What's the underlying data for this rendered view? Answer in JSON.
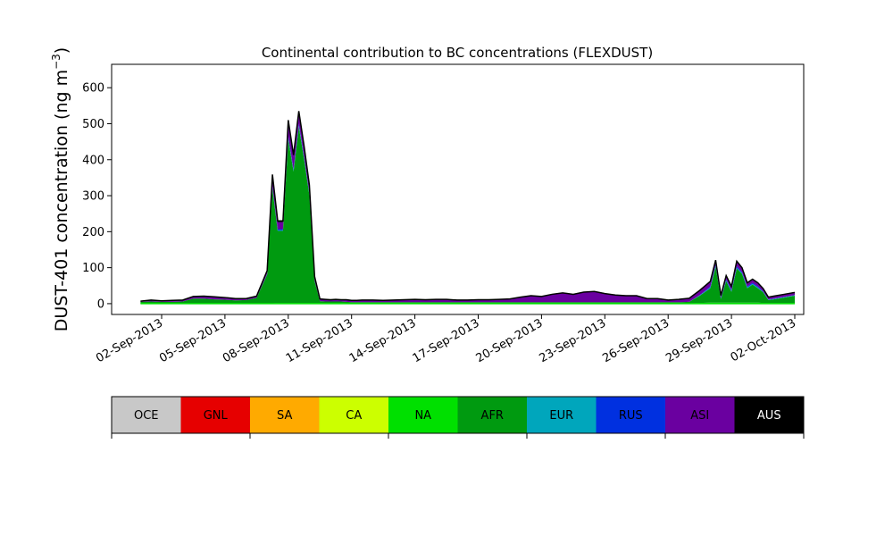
{
  "chart_data": {
    "type": "area",
    "title": "Continental contribution to BC concentrations (FLEXDUST)",
    "ylabel": "DUST-401 concentration (ng m",
    "ylabel_unit_superscript": "−3",
    "ylabel_close": ")",
    "xlabel": "",
    "ylim": [
      -30,
      665
    ],
    "yticks": [
      0,
      100,
      200,
      300,
      400,
      500,
      600
    ],
    "xticks": [
      "02-Sep-2013",
      "05-Sep-2013",
      "08-Sep-2013",
      "11-Sep-2013",
      "14-Sep-2013",
      "17-Sep-2013",
      "20-Sep-2013",
      "23-Sep-2013",
      "26-Sep-2013",
      "29-Sep-2013",
      "02-Oct-2013"
    ],
    "grid": false,
    "stacked": true,
    "region_legend": [
      {
        "name": "OCE",
        "color": "#c8c8c8",
        "label_color": "#000000"
      },
      {
        "name": "GNL",
        "color": "#e60000",
        "label_color": "#000000"
      },
      {
        "name": "SA",
        "color": "#ffaa00",
        "label_color": "#000000"
      },
      {
        "name": "CA",
        "color": "#ccff00",
        "label_color": "#000000"
      },
      {
        "name": "NA",
        "color": "#00e000",
        "label_color": "#000000"
      },
      {
        "name": "AFR",
        "color": "#009a10",
        "label_color": "#000000"
      },
      {
        "name": "EUR",
        "color": "#00a6bc",
        "label_color": "#000000"
      },
      {
        "name": "RUS",
        "color": "#0030e0",
        "label_color": "#000000"
      },
      {
        "name": "ASI",
        "color": "#6a00a0",
        "label_color": "#000000"
      },
      {
        "name": "AUS",
        "color": "#000000",
        "label_color": "#ffffff"
      }
    ],
    "x": [
      "2013-09-01",
      "2013-09-01 12:00",
      "2013-09-02",
      "2013-09-02 12:00",
      "2013-09-03",
      "2013-09-03 12:00",
      "2013-09-04",
      "2013-09-04 12:00",
      "2013-09-05",
      "2013-09-05 12:00",
      "2013-09-06",
      "2013-09-06 12:00",
      "2013-09-07",
      "2013-09-07 06:00",
      "2013-09-07 12:00",
      "2013-09-07 18:00",
      "2013-09-08",
      "2013-09-08 06:00",
      "2013-09-08 12:00",
      "2013-09-08 18:00",
      "2013-09-09",
      "2013-09-09 06:00",
      "2013-09-09 12:00",
      "2013-09-09 18:00",
      "2013-09-10",
      "2013-09-10 06:00",
      "2013-09-10 12:00",
      "2013-09-10 18:00",
      "2013-09-11",
      "2013-09-11 06:00",
      "2013-09-11 12:00",
      "2013-09-12",
      "2013-09-12 12:00",
      "2013-09-13",
      "2013-09-13 12:00",
      "2013-09-14",
      "2013-09-14 12:00",
      "2013-09-15",
      "2013-09-15 12:00",
      "2013-09-16",
      "2013-09-16 12:00",
      "2013-09-17",
      "2013-09-17 12:00",
      "2013-09-18",
      "2013-09-18 12:00",
      "2013-09-19",
      "2013-09-19 12:00",
      "2013-09-20",
      "2013-09-20 12:00",
      "2013-09-21",
      "2013-09-21 12:00",
      "2013-09-22",
      "2013-09-22 12:00",
      "2013-09-23",
      "2013-09-23 12:00",
      "2013-09-24",
      "2013-09-24 12:00",
      "2013-09-25",
      "2013-09-25 12:00",
      "2013-09-26",
      "2013-09-26 12:00",
      "2013-09-27",
      "2013-09-27 12:00",
      "2013-09-28",
      "2013-09-28 06:00",
      "2013-09-28 12:00",
      "2013-09-28 18:00",
      "2013-09-29",
      "2013-09-29 06:00",
      "2013-09-29 12:00",
      "2013-09-29 18:00",
      "2013-09-30",
      "2013-09-30 06:00",
      "2013-09-30 12:00",
      "2013-09-30 18:00",
      "2013-10-01",
      "2013-10-01 12:00",
      "2013-10-02"
    ],
    "series": [
      {
        "region": "NA",
        "values": [
          1,
          1,
          1,
          1,
          1,
          1,
          1,
          1,
          1,
          1,
          1,
          1,
          1,
          1,
          2,
          2,
          2,
          2,
          2,
          2,
          2,
          2,
          2,
          2,
          2,
          2,
          2,
          1,
          1,
          1,
          1,
          1,
          1,
          1,
          1,
          1,
          1,
          1,
          1,
          1,
          1,
          1,
          1,
          1,
          1,
          1,
          1,
          1,
          1,
          1,
          1,
          1,
          1,
          1,
          1,
          1,
          1,
          1,
          1,
          1,
          1,
          1,
          2,
          3,
          3,
          3,
          3,
          3,
          3,
          3,
          3,
          3,
          3,
          2,
          2,
          2,
          2,
          2
        ]
      },
      {
        "region": "AFR",
        "values": [
          4,
          5,
          4,
          4,
          5,
          13,
          13,
          11,
          10,
          8,
          9,
          15,
          80,
          320,
          200,
          200,
          455,
          365,
          490,
          400,
          300,
          60,
          5,
          4,
          4,
          4,
          4,
          4,
          3,
          3,
          3,
          3,
          3,
          3,
          3,
          3,
          3,
          3,
          3,
          3,
          3,
          3,
          3,
          3,
          3,
          3,
          3,
          3,
          3,
          3,
          3,
          3,
          3,
          3,
          3,
          3,
          3,
          3,
          3,
          3,
          3,
          4,
          20,
          40,
          100,
          10,
          60,
          30,
          95,
          80,
          40,
          50,
          40,
          30,
          8,
          10,
          15,
          20
        ]
      },
      {
        "region": "EUR",
        "values": [
          0,
          0,
          0,
          0,
          0,
          0,
          0,
          0,
          0,
          0,
          0,
          0,
          1,
          2,
          2,
          2,
          3,
          3,
          3,
          3,
          2,
          1,
          0,
          0,
          0,
          0,
          0,
          0,
          0,
          0,
          0,
          0,
          0,
          0,
          0,
          0,
          0,
          0,
          0,
          0,
          0,
          0,
          0,
          0,
          0,
          0,
          0,
          0,
          0,
          0,
          0,
          0,
          0,
          0,
          0,
          0,
          0,
          0,
          0,
          0,
          0,
          0,
          1,
          2,
          2,
          1,
          2,
          2,
          2,
          2,
          2,
          2,
          2,
          1,
          1,
          1,
          1,
          1
        ]
      },
      {
        "region": "RUS",
        "values": [
          0,
          0,
          0,
          0,
          0,
          0,
          0,
          0,
          0,
          0,
          0,
          0,
          1,
          3,
          3,
          3,
          5,
          4,
          5,
          4,
          3,
          1,
          0,
          0,
          0,
          0,
          0,
          0,
          0,
          0,
          0,
          0,
          0,
          0,
          0,
          0,
          0,
          0,
          0,
          0,
          0,
          0,
          0,
          0,
          0,
          0,
          0,
          0,
          0,
          0,
          0,
          0,
          0,
          0,
          0,
          0,
          0,
          0,
          0,
          0,
          0,
          0,
          1,
          3,
          4,
          2,
          3,
          3,
          4,
          3,
          3,
          3,
          3,
          2,
          1,
          1,
          1,
          1
        ]
      },
      {
        "region": "ASI",
        "values": [
          2,
          4,
          3,
          4,
          4,
          6,
          7,
          7,
          6,
          5,
          4,
          5,
          8,
          30,
          20,
          20,
          40,
          35,
          30,
          25,
          20,
          10,
          6,
          6,
          5,
          6,
          5,
          6,
          5,
          5,
          6,
          6,
          5,
          6,
          7,
          8,
          7,
          8,
          8,
          6,
          6,
          7,
          7,
          8,
          9,
          14,
          18,
          16,
          22,
          26,
          22,
          28,
          30,
          24,
          20,
          18,
          18,
          10,
          10,
          6,
          8,
          10,
          12,
          12,
          10,
          6,
          8,
          8,
          12,
          10,
          8,
          8,
          8,
          6,
          5,
          6,
          6,
          6
        ]
      },
      {
        "region": "AUS",
        "values": [
          0,
          0,
          0,
          0,
          0,
          0,
          0,
          0,
          0,
          0,
          0,
          0,
          1,
          3,
          3,
          3,
          5,
          4,
          5,
          4,
          3,
          1,
          0,
          0,
          0,
          0,
          0,
          0,
          0,
          0,
          0,
          0,
          0,
          0,
          0,
          0,
          0,
          0,
          0,
          0,
          0,
          0,
          0,
          0,
          0,
          0,
          0,
          0,
          0,
          0,
          0,
          0,
          0,
          0,
          0,
          0,
          0,
          0,
          0,
          0,
          0,
          0,
          1,
          2,
          2,
          1,
          2,
          2,
          2,
          2,
          2,
          2,
          2,
          1,
          1,
          1,
          1,
          1
        ]
      }
    ]
  }
}
